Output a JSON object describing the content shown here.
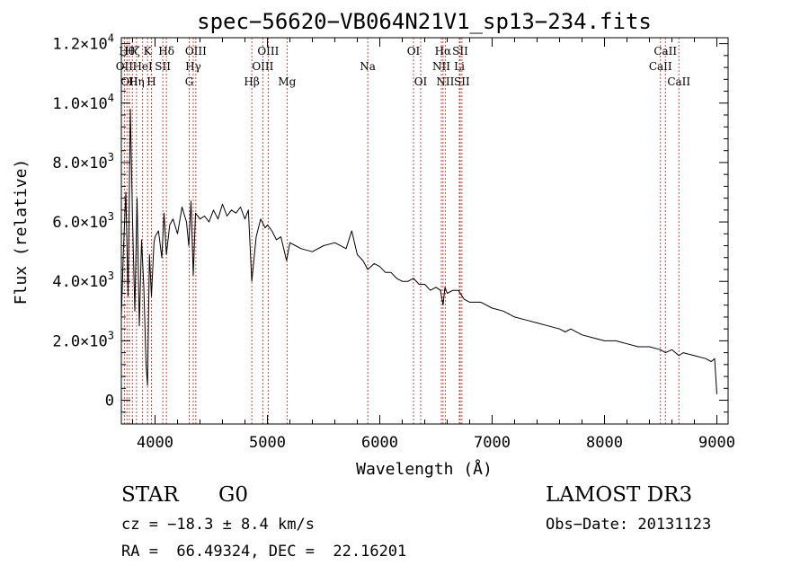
{
  "chart_data": {
    "type": "line",
    "title": "spec−56620−VB064N21V1_sp13−234.fits",
    "xlabel": "Wavelength (Å)",
    "ylabel": "Flux (relative)",
    "xlim": [
      3700,
      9100
    ],
    "ylim": [
      -800,
      12200
    ],
    "x_ticks": [
      4000,
      5000,
      6000,
      7000,
      8000,
      9000
    ],
    "x_tick_labels": [
      "4000",
      "5000",
      "6000",
      "7000",
      "8000",
      "9000"
    ],
    "y_ticks": [
      0,
      2000,
      4000,
      6000,
      8000,
      10000,
      12000
    ],
    "y_tick_labels": [
      {
        "mant": "0",
        "exp": ""
      },
      {
        "mant": "2.0×10",
        "exp": "3"
      },
      {
        "mant": "4.0×10",
        "exp": "3"
      },
      {
        "mant": "6.0×10",
        "exp": "3"
      },
      {
        "mant": "8.0×10",
        "exp": "3"
      },
      {
        "mant": "1.0×10",
        "exp": "4"
      },
      {
        "mant": "1.2×10",
        "exp": "4"
      }
    ],
    "series": [
      {
        "name": "flux",
        "x": [
          3700,
          3720,
          3740,
          3760,
          3780,
          3800,
          3820,
          3840,
          3860,
          3880,
          3900,
          3920,
          3933,
          3950,
          3968,
          3990,
          4000,
          4030,
          4060,
          4080,
          4101,
          4130,
          4160,
          4200,
          4240,
          4280,
          4300,
          4320,
          4340,
          4360,
          4400,
          4440,
          4480,
          4520,
          4560,
          4600,
          4640,
          4680,
          4720,
          4760,
          4800,
          4830,
          4861,
          4900,
          4940,
          4980,
          5000,
          5040,
          5080,
          5120,
          5170,
          5200,
          5250,
          5300,
          5400,
          5500,
          5600,
          5700,
          5750,
          5800,
          5850,
          5893,
          5950,
          6000,
          6050,
          6100,
          6150,
          6200,
          6250,
          6300,
          6350,
          6400,
          6450,
          6500,
          6540,
          6563,
          6580,
          6600,
          6650,
          6700,
          6750,
          6800,
          6900,
          7000,
          7100,
          7200,
          7300,
          7400,
          7500,
          7600,
          7650,
          7700,
          7800,
          7900,
          8000,
          8100,
          8200,
          8300,
          8400,
          8498,
          8542,
          8600,
          8662,
          8700,
          8800,
          8900,
          8950,
          8980,
          9000
        ],
        "y": [
          2800,
          5200,
          7000,
          3500,
          9800,
          6000,
          3000,
          6800,
          2500,
          5400,
          3800,
          1200,
          500,
          4900,
          3500,
          5300,
          5500,
          5700,
          4800,
          6300,
          4900,
          5900,
          6100,
          5600,
          6500,
          6000,
          5200,
          6700,
          4200,
          6300,
          6100,
          6200,
          6000,
          6400,
          6100,
          6600,
          6200,
          6400,
          6300,
          6500,
          6100,
          6400,
          4000,
          5500,
          6100,
          5800,
          5900,
          5700,
          5400,
          5500,
          4700,
          5300,
          5200,
          5100,
          5000,
          5200,
          5300,
          5100,
          5700,
          4900,
          4700,
          4400,
          4600,
          4500,
          4300,
          4300,
          4100,
          4000,
          4000,
          4100,
          3900,
          3900,
          3700,
          3800,
          3700,
          3200,
          3800,
          3600,
          3700,
          3700,
          3400,
          3300,
          3300,
          3100,
          3000,
          2800,
          2700,
          2600,
          2500,
          2400,
          2300,
          2400,
          2200,
          2100,
          2000,
          2000,
          1900,
          1800,
          1800,
          1700,
          1600,
          1700,
          1500,
          1600,
          1500,
          1400,
          1300,
          1400,
          200
        ]
      }
    ],
    "lines": [
      {
        "wl": 3727,
        "row": 1,
        "text": "OII"
      },
      {
        "wl": 3750,
        "row": 0,
        "text": "Hθ"
      },
      {
        "wl": 3771,
        "row": 2,
        "text": "OII"
      },
      {
        "wl": 3798,
        "row": 0,
        "text": "Hζ"
      },
      {
        "wl": 3835,
        "row": 2,
        "text": "Hη"
      },
      {
        "wl": 3889,
        "row": 1,
        "text": "HeI"
      },
      {
        "wl": 3933,
        "row": 0,
        "text": "K"
      },
      {
        "wl": 3968,
        "row": 2,
        "text": "H"
      },
      {
        "wl": 4069,
        "row": 1,
        "text": "SII"
      },
      {
        "wl": 4101,
        "row": 0,
        "text": "Hδ"
      },
      {
        "wl": 4340,
        "row": 1,
        "text": "Hγ"
      },
      {
        "wl": 4304,
        "row": 2,
        "text": "G"
      },
      {
        "wl": 4363,
        "row": 0,
        "text": "OIII"
      },
      {
        "wl": 4861,
        "row": 2,
        "text": "Hβ"
      },
      {
        "wl": 4959,
        "row": 1,
        "text": "OIII"
      },
      {
        "wl": 5007,
        "row": 0,
        "text": "OIII"
      },
      {
        "wl": 5175,
        "row": 2,
        "text": "Mg"
      },
      {
        "wl": 5893,
        "row": 1,
        "text": "Na"
      },
      {
        "wl": 6300,
        "row": 0,
        "text": "OI"
      },
      {
        "wl": 6364,
        "row": 2,
        "text": "OI"
      },
      {
        "wl": 6548,
        "row": 1,
        "text": "NII"
      },
      {
        "wl": 6563,
        "row": 0,
        "text": "Hα"
      },
      {
        "wl": 6583,
        "row": 2,
        "text": "NII"
      },
      {
        "wl": 6708,
        "row": 1,
        "text": "Li"
      },
      {
        "wl": 6716,
        "row": 0,
        "text": "SII"
      },
      {
        "wl": 6731,
        "row": 2,
        "text": "SII"
      },
      {
        "wl": 8498,
        "row": 1,
        "text": "CaII"
      },
      {
        "wl": 8542,
        "row": 0,
        "text": "CaII"
      },
      {
        "wl": 8662,
        "row": 2,
        "text": "CaII"
      }
    ]
  },
  "info": {
    "class": "STAR",
    "subclass": "G0",
    "survey": "LAMOST DR3",
    "cz": "cz = −18.3 ± 8.4 km/s",
    "obs_date": "Obs−Date: 20131123",
    "radec": "RA =  66.49324, DEC =  22.16201"
  }
}
